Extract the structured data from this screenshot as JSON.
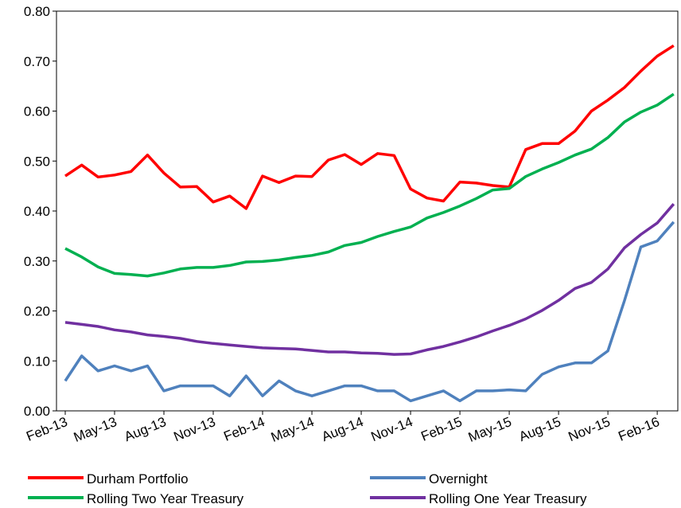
{
  "chart_data": {
    "type": "line",
    "categories": [
      "Feb-13",
      null,
      null,
      "May-13",
      null,
      null,
      "Aug-13",
      null,
      null,
      "Nov-13",
      null,
      null,
      "Feb-14",
      null,
      null,
      "May-14",
      null,
      null,
      "Aug-14",
      null,
      null,
      "Nov-14",
      null,
      null,
      "Feb-15",
      null,
      null,
      "May-15",
      null,
      null,
      "Aug-15",
      null,
      null,
      "Nov-15",
      null,
      null,
      "Feb-16",
      null
    ],
    "series": [
      {
        "name": "Durham Portfolio",
        "color": "#ff0000",
        "values": [
          0.47,
          0.492,
          0.468,
          0.472,
          0.479,
          0.512,
          0.476,
          0.448,
          0.449,
          0.418,
          0.43,
          0.405,
          0.47,
          0.457,
          0.47,
          0.469,
          0.502,
          0.513,
          0.493,
          0.515,
          0.511,
          0.444,
          0.426,
          0.42,
          0.458,
          0.456,
          0.451,
          0.448,
          0.523,
          0.535,
          0.535,
          0.56,
          0.6,
          0.622,
          0.647,
          0.68,
          0.71,
          0.731
        ]
      },
      {
        "name": "Overnight",
        "color": "#4f81bd",
        "values": [
          0.06,
          0.11,
          0.08,
          0.09,
          0.08,
          0.09,
          0.04,
          0.05,
          0.05,
          0.05,
          0.03,
          0.07,
          0.03,
          0.06,
          0.04,
          0.03,
          0.04,
          0.05,
          0.05,
          0.04,
          0.04,
          0.02,
          0.03,
          0.04,
          0.02,
          0.04,
          0.04,
          0.042,
          0.04,
          0.073,
          0.088,
          0.096,
          0.096,
          0.12,
          0.22,
          0.328,
          0.34,
          0.378
        ]
      },
      {
        "name": "Rolling Two Year Treasury",
        "color": "#00b050",
        "values": [
          0.325,
          0.308,
          0.288,
          0.275,
          0.273,
          0.27,
          0.276,
          0.284,
          0.287,
          0.287,
          0.291,
          0.298,
          0.299,
          0.302,
          0.307,
          0.311,
          0.318,
          0.331,
          0.337,
          0.349,
          0.359,
          0.368,
          0.386,
          0.397,
          0.41,
          0.425,
          0.442,
          0.445,
          0.469,
          0.484,
          0.497,
          0.512,
          0.524,
          0.547,
          0.578,
          0.598,
          0.612,
          0.634
        ]
      },
      {
        "name": "Rolling One Year Treasury",
        "color": "#7030a0",
        "values": [
          0.177,
          0.173,
          0.169,
          0.162,
          0.158,
          0.152,
          0.149,
          0.145,
          0.139,
          0.135,
          0.132,
          0.129,
          0.126,
          0.125,
          0.124,
          0.121,
          0.118,
          0.118,
          0.116,
          0.115,
          0.113,
          0.114,
          0.122,
          0.129,
          0.138,
          0.148,
          0.16,
          0.171,
          0.184,
          0.201,
          0.221,
          0.245,
          0.257,
          0.284,
          0.326,
          0.353,
          0.376,
          0.414
        ]
      }
    ],
    "ylim": [
      0,
      0.8
    ],
    "yticks": [
      {
        "value": 0,
        "label": "0.00"
      },
      {
        "value": 0.1,
        "label": "0.10"
      },
      {
        "value": 0.2,
        "label": "0.20"
      },
      {
        "value": 0.3,
        "label": "0.30"
      },
      {
        "value": 0.4,
        "label": "0.40"
      },
      {
        "value": 0.5,
        "label": "0.50"
      },
      {
        "value": 0.6,
        "label": "0.60"
      },
      {
        "value": 0.7,
        "label": "0.70"
      },
      {
        "value": 0.8,
        "label": "0.80"
      }
    ],
    "legend": "bottom"
  }
}
